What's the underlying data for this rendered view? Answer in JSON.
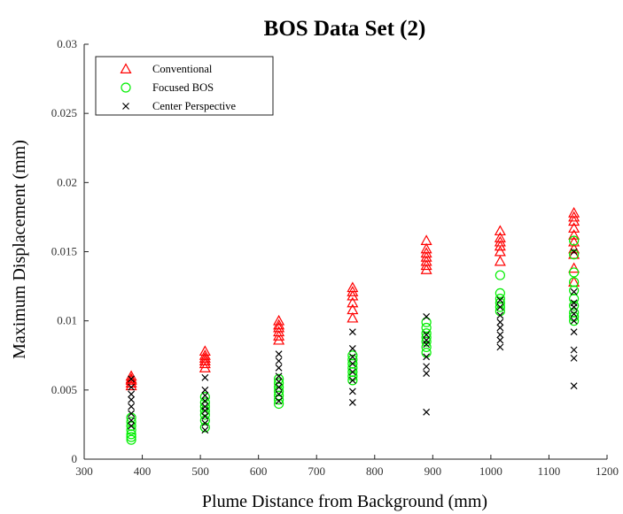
{
  "chart_data": {
    "type": "scatter",
    "title": "BOS Data Set (2)",
    "xlabel": "Plume Distance from Background (mm)",
    "ylabel": "Maximum Displacement (mm)",
    "xlim": [
      300,
      1200
    ],
    "ylim": [
      0,
      0.03
    ],
    "x_ticks": [
      "300",
      "400",
      "500",
      "600",
      "700",
      "800",
      "900",
      "1000",
      "1100",
      "1200"
    ],
    "y_ticks": [
      "0",
      "0.005",
      "0.01",
      "0.015",
      "0.02",
      "0.025",
      "0.03"
    ],
    "grid": false,
    "legend_position": "top-left",
    "series": [
      {
        "name": "Conventional",
        "marker": "triangle",
        "color": "#ff0000",
        "points": [
          [
            381,
            0.0053
          ],
          [
            381,
            0.0055
          ],
          [
            381,
            0.0057
          ],
          [
            381,
            0.0058
          ],
          [
            381,
            0.006
          ],
          [
            508,
            0.0066
          ],
          [
            508,
            0.0069
          ],
          [
            508,
            0.0071
          ],
          [
            508,
            0.0073
          ],
          [
            508,
            0.0075
          ],
          [
            508,
            0.0078
          ],
          [
            635,
            0.0086
          ],
          [
            635,
            0.0089
          ],
          [
            635,
            0.0092
          ],
          [
            635,
            0.0095
          ],
          [
            635,
            0.0097
          ],
          [
            635,
            0.01
          ],
          [
            762,
            0.0102
          ],
          [
            762,
            0.0108
          ],
          [
            762,
            0.0113
          ],
          [
            762,
            0.0118
          ],
          [
            762,
            0.0121
          ],
          [
            762,
            0.0124
          ],
          [
            889,
            0.0137
          ],
          [
            889,
            0.014
          ],
          [
            889,
            0.0143
          ],
          [
            889,
            0.0146
          ],
          [
            889,
            0.0149
          ],
          [
            889,
            0.0152
          ],
          [
            889,
            0.0158
          ],
          [
            1016,
            0.0143
          ],
          [
            1016,
            0.015
          ],
          [
            1016,
            0.0154
          ],
          [
            1016,
            0.0157
          ],
          [
            1016,
            0.016
          ],
          [
            1016,
            0.0165
          ],
          [
            1143,
            0.0128
          ],
          [
            1143,
            0.0138
          ],
          [
            1143,
            0.0148
          ],
          [
            1143,
            0.0152
          ],
          [
            1143,
            0.0157
          ],
          [
            1143,
            0.0162
          ],
          [
            1143,
            0.0167
          ],
          [
            1143,
            0.0172
          ],
          [
            1143,
            0.0175
          ],
          [
            1143,
            0.0178
          ]
        ]
      },
      {
        "name": "Focused BOS",
        "marker": "circle",
        "color": "#00ee00",
        "points": [
          [
            381,
            0.0014
          ],
          [
            381,
            0.0016
          ],
          [
            381,
            0.0018
          ],
          [
            381,
            0.0021
          ],
          [
            381,
            0.0024
          ],
          [
            381,
            0.0027
          ],
          [
            381,
            0.003
          ],
          [
            508,
            0.0023
          ],
          [
            508,
            0.0028
          ],
          [
            508,
            0.0032
          ],
          [
            508,
            0.0035
          ],
          [
            508,
            0.0038
          ],
          [
            508,
            0.0041
          ],
          [
            508,
            0.0045
          ],
          [
            635,
            0.004
          ],
          [
            635,
            0.0043
          ],
          [
            635,
            0.0046
          ],
          [
            635,
            0.0049
          ],
          [
            635,
            0.0052
          ],
          [
            635,
            0.0055
          ],
          [
            635,
            0.0058
          ],
          [
            762,
            0.0057
          ],
          [
            762,
            0.006
          ],
          [
            762,
            0.0063
          ],
          [
            762,
            0.0066
          ],
          [
            762,
            0.0069
          ],
          [
            762,
            0.0072
          ],
          [
            762,
            0.0075
          ],
          [
            889,
            0.0077
          ],
          [
            889,
            0.0081
          ],
          [
            889,
            0.0085
          ],
          [
            889,
            0.0088
          ],
          [
            889,
            0.0091
          ],
          [
            889,
            0.0095
          ],
          [
            889,
            0.0099
          ],
          [
            1016,
            0.0107
          ],
          [
            1016,
            0.011
          ],
          [
            1016,
            0.0113
          ],
          [
            1016,
            0.0116
          ],
          [
            1016,
            0.012
          ],
          [
            1016,
            0.0133
          ],
          [
            1143,
            0.01
          ],
          [
            1143,
            0.0103
          ],
          [
            1143,
            0.0106
          ],
          [
            1143,
            0.0111
          ],
          [
            1143,
            0.0116
          ],
          [
            1143,
            0.0122
          ],
          [
            1143,
            0.0128
          ],
          [
            1143,
            0.0135
          ],
          [
            1143,
            0.0148
          ],
          [
            1143,
            0.0158
          ]
        ]
      },
      {
        "name": "Center Perspective",
        "marker": "x",
        "color": "#000000",
        "points": [
          [
            381,
            0.0024
          ],
          [
            381,
            0.0028
          ],
          [
            381,
            0.0033
          ],
          [
            381,
            0.0038
          ],
          [
            381,
            0.0043
          ],
          [
            381,
            0.0047
          ],
          [
            381,
            0.0052
          ],
          [
            381,
            0.0058
          ],
          [
            508,
            0.0021
          ],
          [
            508,
            0.0026
          ],
          [
            508,
            0.0031
          ],
          [
            508,
            0.0035
          ],
          [
            508,
            0.0038
          ],
          [
            508,
            0.0042
          ],
          [
            508,
            0.0046
          ],
          [
            508,
            0.005
          ],
          [
            508,
            0.0059
          ],
          [
            635,
            0.0042
          ],
          [
            635,
            0.0047
          ],
          [
            635,
            0.0052
          ],
          [
            635,
            0.0056
          ],
          [
            635,
            0.006
          ],
          [
            635,
            0.0066
          ],
          [
            635,
            0.0071
          ],
          [
            635,
            0.0076
          ],
          [
            762,
            0.0041
          ],
          [
            762,
            0.0049
          ],
          [
            762,
            0.0057
          ],
          [
            762,
            0.0063
          ],
          [
            762,
            0.0069
          ],
          [
            762,
            0.0074
          ],
          [
            762,
            0.008
          ],
          [
            762,
            0.0092
          ],
          [
            889,
            0.0034
          ],
          [
            889,
            0.0062
          ],
          [
            889,
            0.0067
          ],
          [
            889,
            0.0074
          ],
          [
            889,
            0.0083
          ],
          [
            889,
            0.0086
          ],
          [
            889,
            0.009
          ],
          [
            889,
            0.0103
          ],
          [
            1016,
            0.0081
          ],
          [
            1016,
            0.0086
          ],
          [
            1016,
            0.009
          ],
          [
            1016,
            0.0095
          ],
          [
            1016,
            0.0099
          ],
          [
            1016,
            0.0104
          ],
          [
            1016,
            0.011
          ],
          [
            1016,
            0.0115
          ],
          [
            1143,
            0.0053
          ],
          [
            1143,
            0.0073
          ],
          [
            1143,
            0.0079
          ],
          [
            1143,
            0.0092
          ],
          [
            1143,
            0.01
          ],
          [
            1143,
            0.0105
          ],
          [
            1143,
            0.011
          ],
          [
            1143,
            0.0113
          ],
          [
            1143,
            0.0121
          ],
          [
            1143,
            0.015
          ]
        ]
      }
    ]
  }
}
